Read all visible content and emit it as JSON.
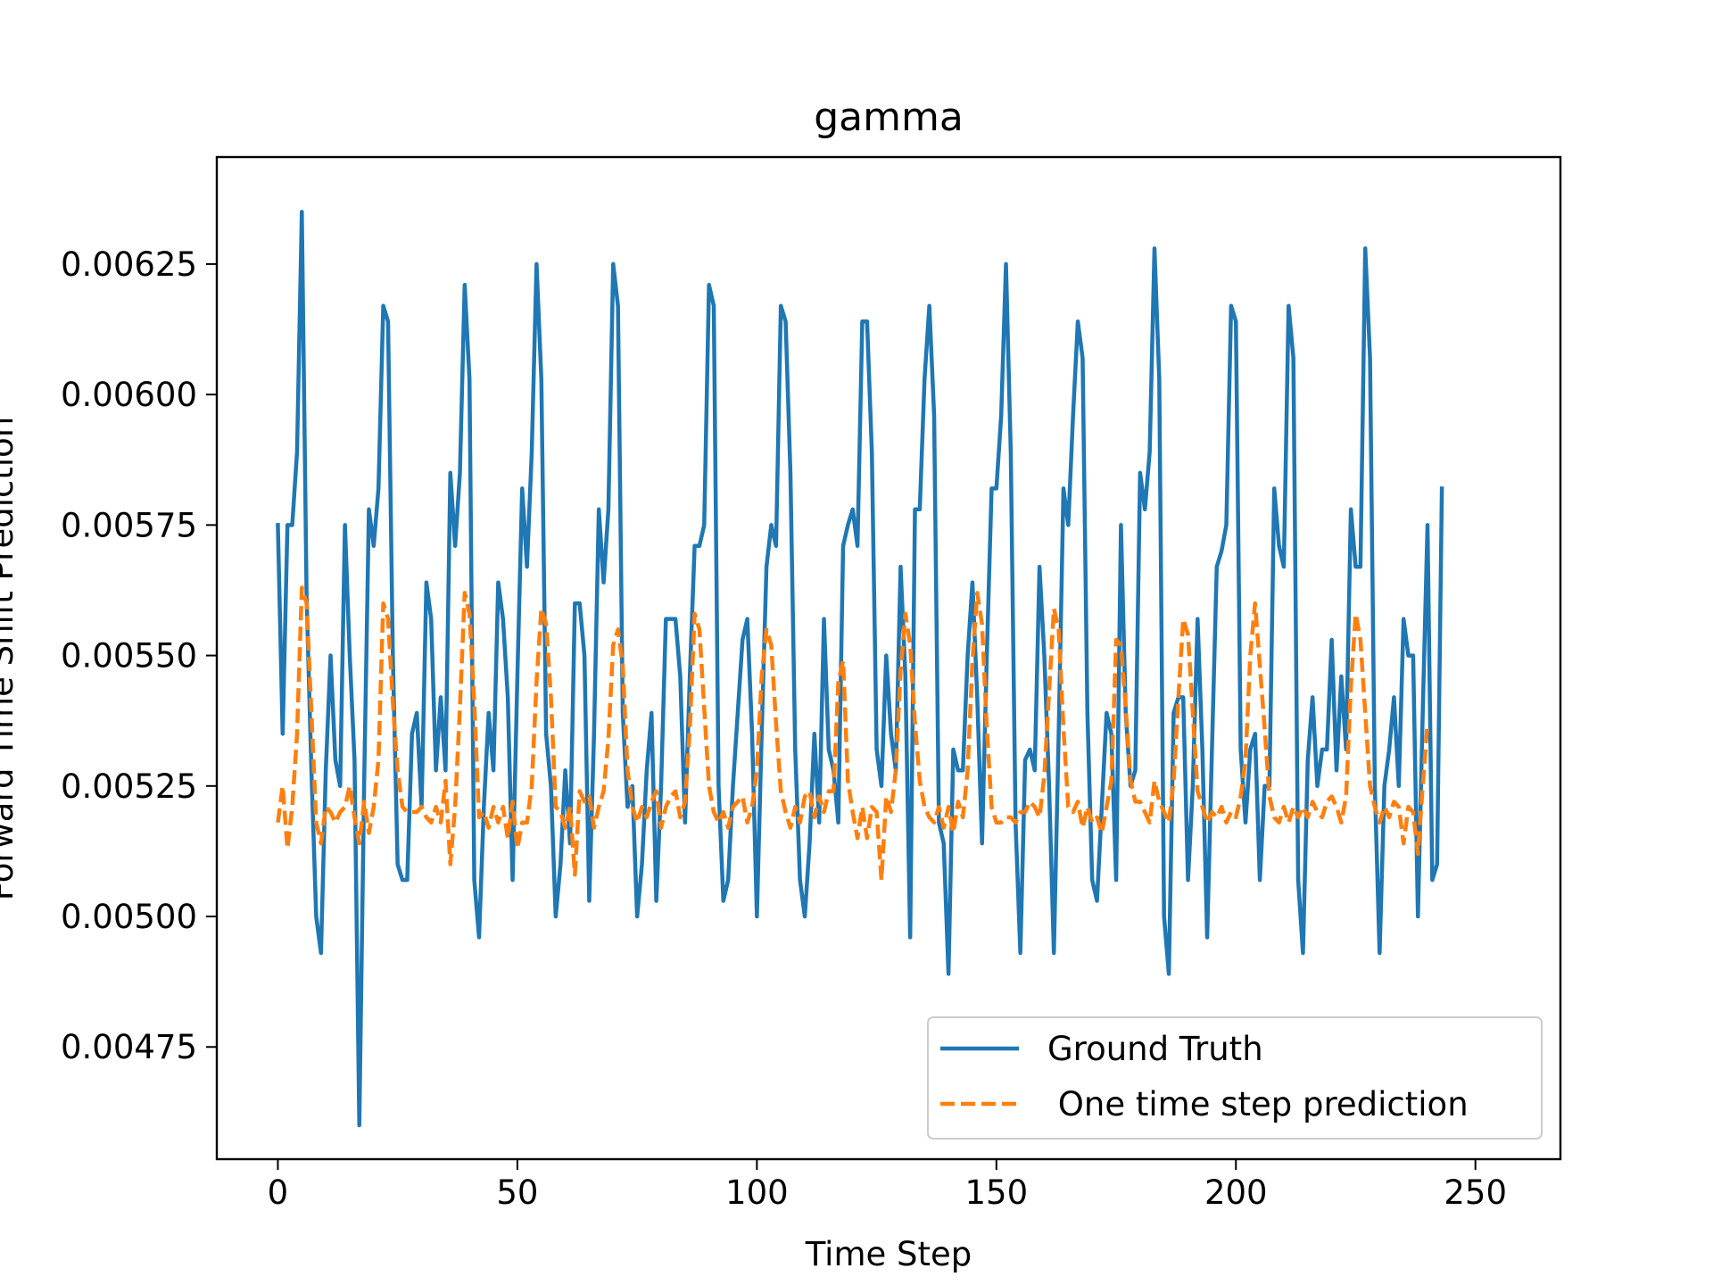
{
  "chart_data": {
    "type": "line",
    "title": "gamma",
    "xlabel": "Time Step",
    "ylabel": "Forward Time Shift Prediction",
    "xlim": [
      -12.75,
      267.75
    ],
    "ylim": [
      0.004535,
      0.006455
    ],
    "xticks": [
      0,
      50,
      100,
      150,
      200,
      250
    ],
    "xtick_labels": [
      "0",
      "50",
      "100",
      "150",
      "200",
      "250"
    ],
    "yticks": [
      0.00475,
      0.005,
      0.00525,
      0.0055,
      0.00575,
      0.006,
      0.00625
    ],
    "ytick_labels": [
      "0.00475",
      "0.00500",
      "0.00525",
      "0.00550",
      "0.00575",
      "0.00600",
      "0.00625"
    ],
    "grid": false,
    "legend_position": "lower right",
    "series": [
      {
        "name": "Ground Truth",
        "style": "solid",
        "color": "#1f77b4",
        "values": [
          0.00575,
          0.00535,
          0.00575,
          0.00575,
          0.00589,
          0.00635,
          0.00561,
          0.00528,
          0.005,
          0.00493,
          0.00528,
          0.0055,
          0.0053,
          0.00525,
          0.00575,
          0.0055,
          0.0053,
          0.0046,
          0.00525,
          0.00578,
          0.00571,
          0.00582,
          0.00617,
          0.00614,
          0.0055,
          0.0051,
          0.00507,
          0.00507,
          0.00535,
          0.00539,
          0.00521,
          0.00564,
          0.00557,
          0.00528,
          0.00542,
          0.00528,
          0.00585,
          0.00571,
          0.00585,
          0.00621,
          0.00603,
          0.00507,
          0.00496,
          0.00521,
          0.00539,
          0.00528,
          0.00564,
          0.00557,
          0.00542,
          0.00507,
          0.00546,
          0.00582,
          0.00567,
          0.00589,
          0.00625,
          0.00603,
          0.00535,
          0.00525,
          0.005,
          0.0051,
          0.00528,
          0.00514,
          0.0056,
          0.0056,
          0.0055,
          0.00503,
          0.00535,
          0.00578,
          0.00564,
          0.00578,
          0.00625,
          0.00617,
          0.00539,
          0.00521,
          0.00525,
          0.005,
          0.0051,
          0.00528,
          0.00539,
          0.00503,
          0.00525,
          0.00557,
          0.00557,
          0.00557,
          0.00546,
          0.00518,
          0.00546,
          0.00571,
          0.00571,
          0.00575,
          0.00621,
          0.00617,
          0.00525,
          0.00503,
          0.00507,
          0.00525,
          0.00539,
          0.00553,
          0.00557,
          0.00535,
          0.005,
          0.00535,
          0.00567,
          0.00575,
          0.00571,
          0.00617,
          0.00614,
          0.00585,
          0.00532,
          0.00507,
          0.005,
          0.00514,
          0.00535,
          0.00518,
          0.00557,
          0.00532,
          0.00528,
          0.00518,
          0.00571,
          0.00575,
          0.00578,
          0.00571,
          0.00614,
          0.00614,
          0.00589,
          0.00532,
          0.00525,
          0.0055,
          0.00535,
          0.00528,
          0.00567,
          0.00546,
          0.00496,
          0.00578,
          0.00578,
          0.00603,
          0.00617,
          0.00596,
          0.00518,
          0.00514,
          0.00489,
          0.00532,
          0.00528,
          0.00528,
          0.0055,
          0.00564,
          0.00542,
          0.00514,
          0.0055,
          0.00582,
          0.00582,
          0.00596,
          0.00625,
          0.00589,
          0.00518,
          0.00493,
          0.0053,
          0.00532,
          0.00528,
          0.00567,
          0.0055,
          0.00525,
          0.00493,
          0.00535,
          0.00582,
          0.00575,
          0.00596,
          0.00614,
          0.00607,
          0.00539,
          0.00507,
          0.00503,
          0.00521,
          0.00539,
          0.00535,
          0.00507,
          0.00575,
          0.00539,
          0.00525,
          0.00528,
          0.00585,
          0.00578,
          0.00589,
          0.00628,
          0.00603,
          0.005,
          0.00489,
          0.00539,
          0.00542,
          0.00542,
          0.00507,
          0.00525,
          0.00557,
          0.00532,
          0.00496,
          0.00532,
          0.00567,
          0.0057,
          0.00575,
          0.00617,
          0.00614,
          0.00532,
          0.00518,
          0.00532,
          0.00535,
          0.00507,
          0.00525,
          0.00525,
          0.00582,
          0.00571,
          0.00567,
          0.00617,
          0.00607,
          0.00507,
          0.00493,
          0.0053,
          0.00542,
          0.00525,
          0.00532,
          0.00532,
          0.00553,
          0.00528,
          0.00546,
          0.00532,
          0.00578,
          0.00567,
          0.00567,
          0.00628,
          0.00607,
          0.00525,
          0.00493,
          0.00525,
          0.00532,
          0.00542,
          0.00525,
          0.00557,
          0.0055,
          0.0055,
          0.005,
          0.00539,
          0.00575,
          0.00507,
          0.0051,
          0.00582
        ]
      },
      {
        "name": " One time step prediction",
        "style": "dashed",
        "color": "#ff7f0e",
        "values": [
          0.00518,
          0.00525,
          0.00513,
          0.00521,
          0.00535,
          0.00563,
          0.0056,
          0.00539,
          0.00518,
          0.00514,
          0.00521,
          0.0052,
          0.00518,
          0.0052,
          0.00521,
          0.00525,
          0.00519,
          0.00514,
          0.00522,
          0.00516,
          0.00521,
          0.0053,
          0.0056,
          0.00557,
          0.00541,
          0.00528,
          0.00521,
          0.0052,
          0.0052,
          0.0052,
          0.00521,
          0.00519,
          0.00518,
          0.00521,
          0.00518,
          0.00526,
          0.0051,
          0.00521,
          0.0054,
          0.00562,
          0.00558,
          0.00541,
          0.00519,
          0.0052,
          0.00517,
          0.00521,
          0.00518,
          0.00521,
          0.00515,
          0.00522,
          0.00513,
          0.00518,
          0.00518,
          0.00525,
          0.00545,
          0.00559,
          0.00556,
          0.00542,
          0.00521,
          0.0052,
          0.00517,
          0.00521,
          0.00508,
          0.00524,
          0.00522,
          0.00523,
          0.00517,
          0.00521,
          0.00524,
          0.00534,
          0.00552,
          0.00555,
          0.00548,
          0.00528,
          0.00521,
          0.00518,
          0.00521,
          0.00519,
          0.00522,
          0.00524,
          0.00517,
          0.00521,
          0.00523,
          0.00524,
          0.00519,
          0.00522,
          0.00536,
          0.00558,
          0.00555,
          0.0054,
          0.00525,
          0.0052,
          0.00518,
          0.0052,
          0.00517,
          0.00521,
          0.00522,
          0.00523,
          0.00518,
          0.00521,
          0.00528,
          0.00546,
          0.00555,
          0.00552,
          0.00537,
          0.00524,
          0.0052,
          0.00517,
          0.00521,
          0.00518,
          0.00523,
          0.00524,
          0.00519,
          0.00523,
          0.0052,
          0.00524,
          0.00524,
          0.00545,
          0.00549,
          0.00526,
          0.0052,
          0.00515,
          0.00521,
          0.00515,
          0.00521,
          0.0052,
          0.00507,
          0.00523,
          0.0052,
          0.00528,
          0.00547,
          0.00558,
          0.00552,
          0.00537,
          0.00526,
          0.00521,
          0.00519,
          0.00518,
          0.00521,
          0.00517,
          0.00521,
          0.00516,
          0.00522,
          0.00519,
          0.00528,
          0.00549,
          0.00562,
          0.00556,
          0.00536,
          0.00521,
          0.00518,
          0.00518,
          0.00519,
          0.00519,
          0.00518,
          0.0052,
          0.0052,
          0.00522,
          0.00521,
          0.00519,
          0.00527,
          0.00543,
          0.00559,
          0.00555,
          0.00536,
          0.00521,
          0.0052,
          0.00522,
          0.00517,
          0.00521,
          0.00518,
          0.00519,
          0.00516,
          0.00521,
          0.00526,
          0.00553,
          0.00552,
          0.0054,
          0.00526,
          0.00522,
          0.00522,
          0.0052,
          0.00518,
          0.00526,
          0.00522,
          0.0052,
          0.00518,
          0.00526,
          0.00542,
          0.00557,
          0.00554,
          0.00539,
          0.00524,
          0.00521,
          0.00518,
          0.0052,
          0.00519,
          0.00521,
          0.00518,
          0.0052,
          0.00519,
          0.00523,
          0.0053,
          0.0055,
          0.0056,
          0.00548,
          0.00536,
          0.00523,
          0.00519,
          0.00518,
          0.00521,
          0.00518,
          0.00521,
          0.00519,
          0.00521,
          0.00519,
          0.00522,
          0.0052,
          0.00519,
          0.00522,
          0.00523,
          0.00521,
          0.00518,
          0.00523,
          0.00544,
          0.00558,
          0.00553,
          0.00539,
          0.00525,
          0.00521,
          0.00518,
          0.00521,
          0.00519,
          0.00522,
          0.00521,
          0.00514,
          0.00521,
          0.0052,
          0.00512,
          0.00525,
          0.00537
        ]
      }
    ]
  }
}
